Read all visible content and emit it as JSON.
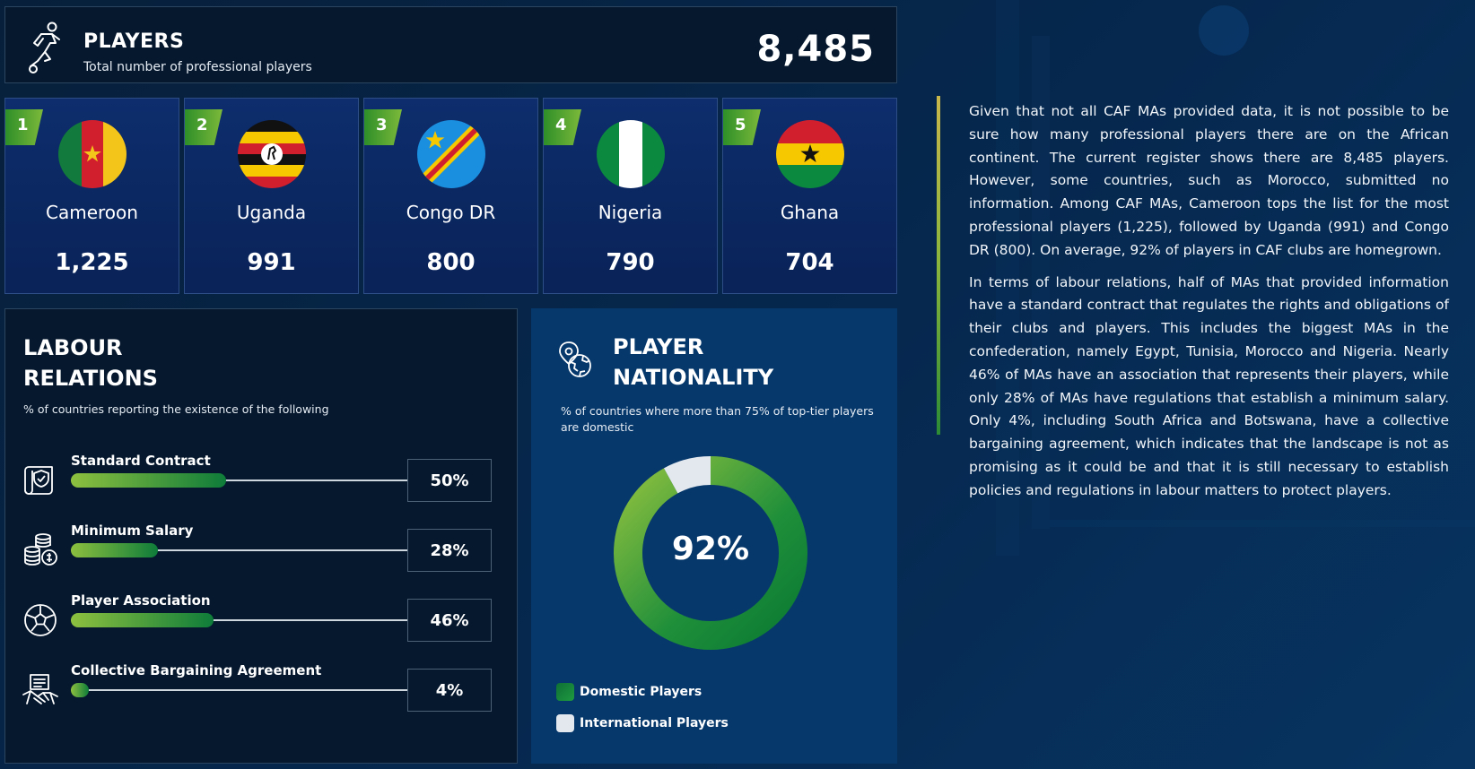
{
  "players": {
    "title": "PLAYERS",
    "subtitle": "Total number of professional players",
    "total": "8,485",
    "icon": "footballer-kicking-icon"
  },
  "top_countries": [
    {
      "rank": "1",
      "name": "Cameroon",
      "value": "1,225"
    },
    {
      "rank": "2",
      "name": "Uganda",
      "value": "991"
    },
    {
      "rank": "3",
      "name": "Congo DR",
      "value": "800"
    },
    {
      "rank": "4",
      "name": "Nigeria",
      "value": "790"
    },
    {
      "rank": "5",
      "name": "Ghana",
      "value": "704"
    }
  ],
  "labour": {
    "title_line1": "LABOUR",
    "title_line2": "RELATIONS",
    "subtitle": "% of countries reporting the existence of the following",
    "items": [
      {
        "label": "Standard Contract",
        "value_text": "50%",
        "value": 50,
        "icon": "contract-scroll-icon"
      },
      {
        "label": "Minimum Salary",
        "value_text": "28%",
        "value": 28,
        "icon": "coins-stack-icon"
      },
      {
        "label": "Player Association",
        "value_text": "46%",
        "value": 46,
        "icon": "football-ball-icon"
      },
      {
        "label": "Collective Bargaining Agreement",
        "value_text": "4%",
        "value": 4,
        "icon": "handshake-document-icon"
      }
    ]
  },
  "nationality": {
    "title_line1": "PLAYER",
    "title_line2": "NATIONALITY",
    "subtitle": "% of countries where more than 75% of top-tier players are domestic",
    "center_label": "92%",
    "icon": "globe-location-icon",
    "legend": [
      {
        "label": "Domestic Players",
        "color": "#1f8f3a"
      },
      {
        "label": "International Players",
        "color": "#e3e8ef"
      }
    ]
  },
  "chart_data": {
    "type": "pie",
    "categories": [
      "Domestic Players",
      "International Players"
    ],
    "values": [
      92,
      8
    ],
    "title": "",
    "legend": "bottom-left"
  },
  "paragraphs": [
    "Given that not all CAF MAs provided data, it is not possible to be sure how many professional players there are on the African continent. The current register shows there are 8,485 players. However, some countries, such as Morocco, submitted no information. Among CAF MAs, Cameroon tops the list for the most professional players (1,225), followed by Uganda (991) and Congo DR (800). On average, 92% of players in CAF clubs are homegrown.",
    "In terms of labour relations, half of MAs that provided information have a standard contract that regulates the rights and obligations of their clubs and players. This includes the biggest MAs in the confederation, namely Egypt, Tunisia, Morocco and Nigeria. Nearly 46% of MAs have an association that represents their players, while only 28% of MAs have regulations that establish a minimum salary. Only 4%, including South Africa and Botswana, have a collective bargaining agreement, which indicates that the landscape is not as promising as it could be and that it is still necessary to establish policies and regulations in labour matters to protect players."
  ]
}
